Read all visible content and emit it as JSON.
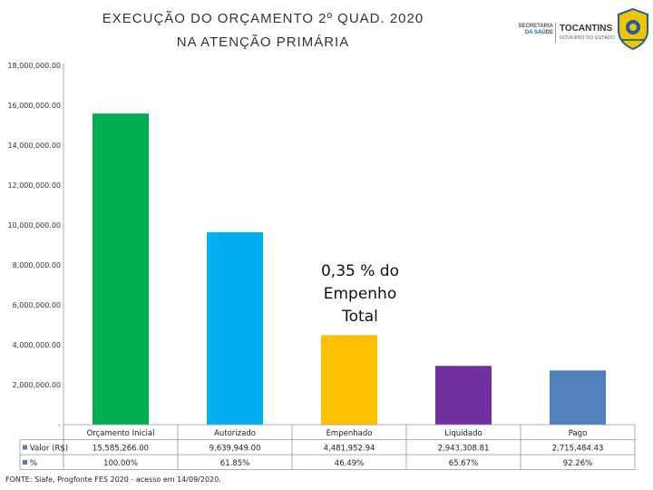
{
  "header": {
    "title_line1": "EXECUÇÃO DO ORÇAMENTO  2º QUAD. 2020",
    "title_line2": "NA ATENÇÃO PRIMÁRIA",
    "logo_secretaria_line1": "SECRETARIA",
    "logo_secretaria_line2": "DA SAÚDE",
    "logo_state": "TOCANTINS",
    "logo_government": "GOVERNO DO ESTADO"
  },
  "annotation": [
    "0,35 % do",
    "Empenho",
    "Total"
  ],
  "source": "FONTE: Siafe, Progfonte FES 2020 - acesso em 14/09/2020.",
  "chart_data": {
    "type": "bar",
    "title": "EXECUÇÃO DO ORÇAMENTO  2º QUAD. 2020 NA ATENÇÃO PRIMÁRIA",
    "categories": [
      "Orçamento Inicial",
      "Autorizado",
      "Empenhado",
      "Liquidado",
      "Pago"
    ],
    "values": [
      15585266.0,
      9639949.0,
      4481952.94,
      2943308.81,
      2715484.43
    ],
    "bar_colors": [
      "#00b050",
      "#00b0f0",
      "#ffc000",
      "#7030a0",
      "#4f81bd"
    ],
    "ylim": [
      0,
      18000000
    ],
    "yticks": [
      0,
      2000000,
      4000000,
      6000000,
      8000000,
      10000000,
      12000000,
      14000000,
      16000000,
      18000000
    ],
    "ytick_labels": [
      "-",
      "2,000,000.00",
      "4,000,000.00",
      "6,000,000.00",
      "8,000,000.00",
      "10,000,000.00",
      "12,000,000.00",
      "14,000,000.00",
      "16,000,000.00",
      "18,000,000.00"
    ],
    "grid": false,
    "table": {
      "rows": [
        {
          "label": "Valor (R$)",
          "values": [
            "15,585,266.00",
            "9,639,949.00",
            "4,481,952.94",
            "2,943,308.81",
            "2,715,484.43"
          ]
        },
        {
          "label": "%",
          "values": [
            "100.00%",
            "61.85%",
            "46.49%",
            "65.67%",
            "92.26%"
          ]
        }
      ]
    }
  }
}
